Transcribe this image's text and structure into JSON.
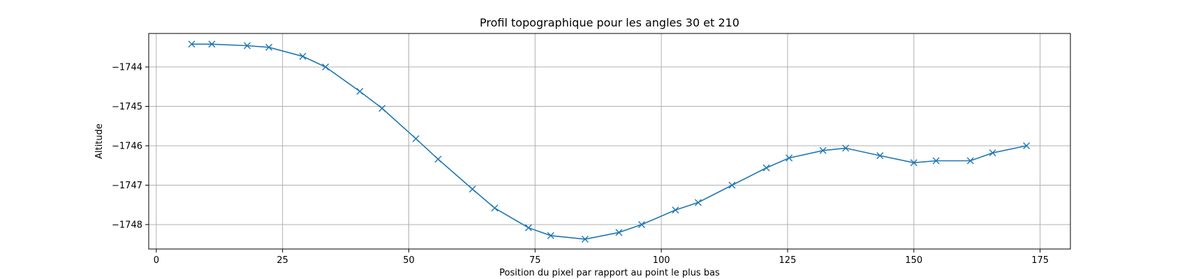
{
  "chart_data": {
    "type": "line",
    "title": "Profil topographique pour les angles 30 et 210",
    "xlabel": "Position du pixel par rapport au point le plus bas",
    "ylabel": "Altitude",
    "xlim": [
      -1.5,
      181
    ],
    "ylim": [
      -1748.62,
      -1743.15
    ],
    "x_ticks": [
      0,
      25,
      50,
      75,
      100,
      125,
      150,
      175
    ],
    "y_ticks": [
      -1748,
      -1747,
      -1746,
      -1745,
      -1744
    ],
    "x_tick_labels": [
      "0",
      "25",
      "50",
      "75",
      "100",
      "125",
      "150",
      "175"
    ],
    "y_tick_labels": [
      "−1748",
      "−1747",
      "−1746",
      "−1745",
      "−1744"
    ],
    "grid": true,
    "marker": "x",
    "color": "#1f77b4",
    "series": [
      {
        "x": [
          7,
          11,
          18,
          22.3,
          29,
          33.5,
          40.3,
          44.7,
          51.4,
          55.8,
          62.6,
          67,
          73.7,
          78.1,
          84.9,
          91.6,
          96.1,
          102.8,
          107.3,
          114,
          120.8,
          125.3,
          132,
          136.5,
          143.3,
          150,
          154.4,
          161.2,
          165.6,
          172.3
        ],
        "y": [
          -1743.42,
          -1743.42,
          -1743.46,
          -1743.5,
          -1743.73,
          -1744.0,
          -1744.62,
          -1745.05,
          -1745.82,
          -1746.34,
          -1747.1,
          -1747.58,
          -1748.08,
          -1748.28,
          -1748.37,
          -1748.2,
          -1748.0,
          -1747.63,
          -1747.44,
          -1747.0,
          -1746.56,
          -1746.31,
          -1746.12,
          -1746.06,
          -1746.25,
          -1746.43,
          -1746.38,
          -1746.38,
          -1746.18,
          -1746.0
        ]
      }
    ]
  }
}
